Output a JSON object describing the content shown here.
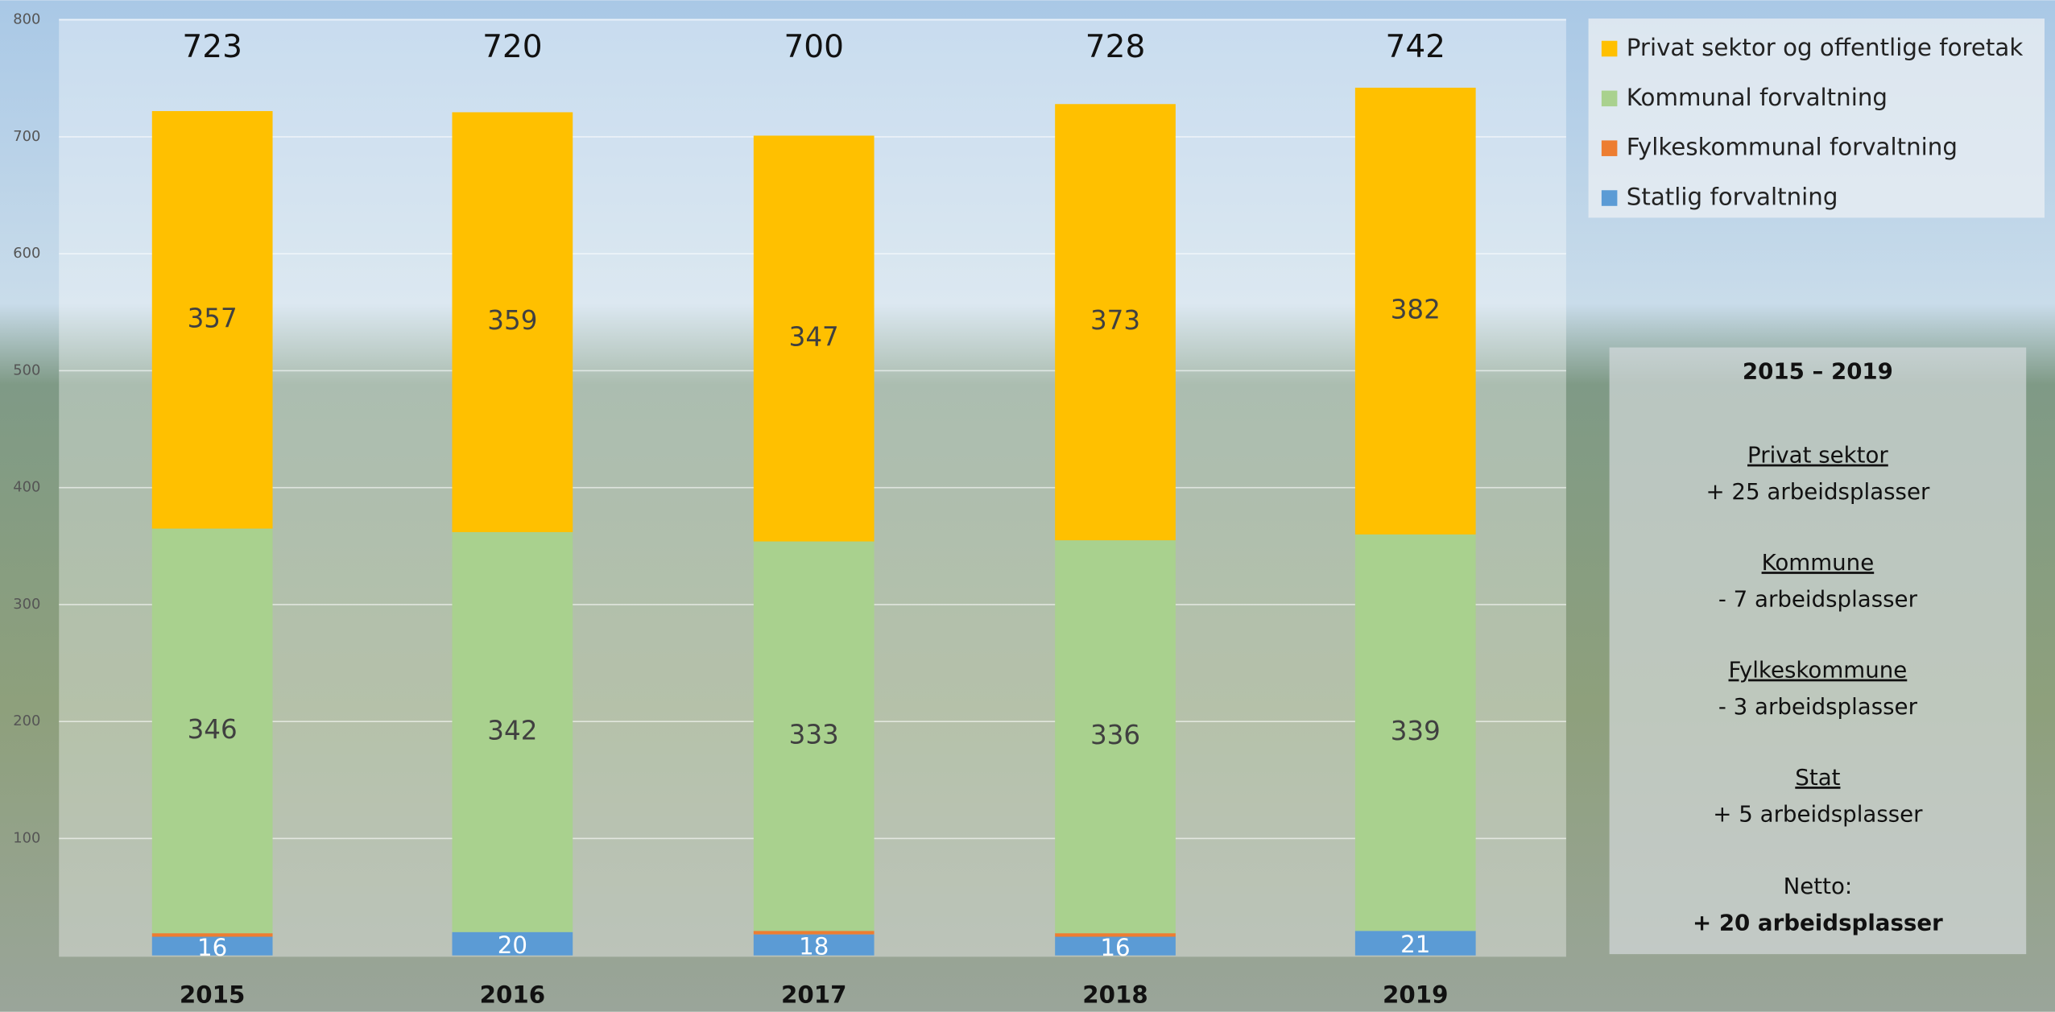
{
  "chart_data": {
    "type": "stacked_bar",
    "categories": [
      "2015",
      "2016",
      "2017",
      "2018",
      "2019"
    ],
    "series": [
      {
        "name": "Statlig forvaltning",
        "color": "#5B9BD5",
        "values": [
          16,
          20,
          18,
          16,
          21
        ]
      },
      {
        "name": "Fylkeskommunal forvaltning",
        "color": "#ED7D31",
        "values": [
          3,
          0,
          3,
          3,
          0
        ]
      },
      {
        "name": "Kommunal forvaltning",
        "color": "#A9D18E",
        "values": [
          346,
          342,
          333,
          336,
          339
        ]
      },
      {
        "name": "Privat sektor og offentlige foretak",
        "color": "#FFC000",
        "values": [
          357,
          359,
          347,
          373,
          382
        ]
      }
    ],
    "totals": [
      723,
      720,
      700,
      728,
      742
    ],
    "ylim": [
      0,
      800
    ],
    "yticks": [
      100,
      200,
      300,
      400,
      500,
      600,
      700,
      800
    ],
    "grid": true,
    "annotation": {
      "title": "2015 – 2019",
      "items": [
        {
          "heading": "Privat sektor",
          "text": "+ 25 arbeidsplasser"
        },
        {
          "heading": "Kommune",
          "text": "- 7 arbeidsplasser"
        },
        {
          "heading": "Fylkeskommune",
          "text": "- 3 arbeidsplasser"
        },
        {
          "heading": "Stat",
          "text": "+ 5 arbeidsplasser"
        }
      ],
      "net_heading": "Netto:",
      "net_text": "+ 20 arbeidsplasser"
    }
  }
}
